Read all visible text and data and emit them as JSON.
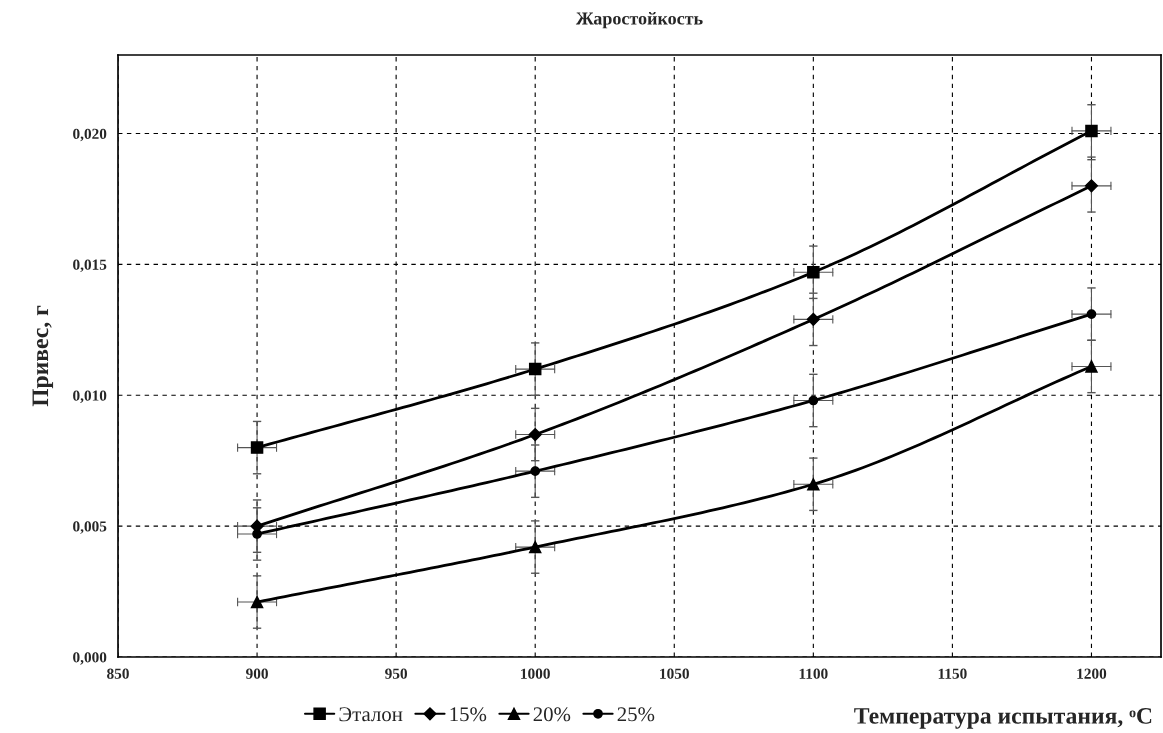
{
  "chart_data": {
    "type": "line",
    "title": "Жаростойкость",
    "xlabel": "Температура испытания, ᵒC",
    "ylabel": "Привес, г",
    "x": [
      900,
      1000,
      1100,
      1200
    ],
    "series": [
      {
        "name": "Эталон",
        "color": "#000000",
        "marker": "square",
        "values": [
          0.008,
          0.011,
          0.0147,
          0.0201
        ],
        "errors": [
          0.001,
          0.001,
          0.001,
          0.001
        ],
        "xerrors": [
          7,
          7,
          7,
          7
        ]
      },
      {
        "name": "15%",
        "color": "#000000",
        "marker": "diamond",
        "values": [
          0.005,
          0.0085,
          0.0129,
          0.018
        ],
        "errors": [
          0.001,
          0.001,
          0.001,
          0.001
        ],
        "xerrors": [
          7,
          7,
          7,
          7
        ]
      },
      {
        "name": "20%",
        "color": "#000000",
        "marker": "triangle",
        "values": [
          0.0021,
          0.0042,
          0.0066,
          0.0111
        ],
        "errors": [
          0.001,
          0.001,
          0.001,
          0.001
        ],
        "xerrors": [
          7,
          7,
          7,
          7
        ]
      },
      {
        "name": "25%",
        "color": "#000000",
        "marker": "circle",
        "values": [
          0.0047,
          0.0071,
          0.0098,
          0.0131
        ],
        "errors": [
          0.001,
          0.001,
          0.001,
          0.001
        ],
        "xerrors": [
          7,
          7,
          7,
          7
        ]
      }
    ],
    "xlim": [
      850,
      1225
    ],
    "xticks": [
      850,
      900,
      950,
      1000,
      1050,
      1100,
      1150,
      1200
    ],
    "ylim": [
      0,
      0.023
    ],
    "yticks": [
      {
        "value": 0,
        "label": "0,000"
      },
      {
        "value": 0.005,
        "label": "0,005"
      },
      {
        "value": 0.01,
        "label": "0,010"
      },
      {
        "value": 0.015,
        "label": "0,015"
      },
      {
        "value": 0.02,
        "label": "0,020"
      }
    ],
    "grid": true,
    "legend": "bottom",
    "line_style": "solid"
  }
}
